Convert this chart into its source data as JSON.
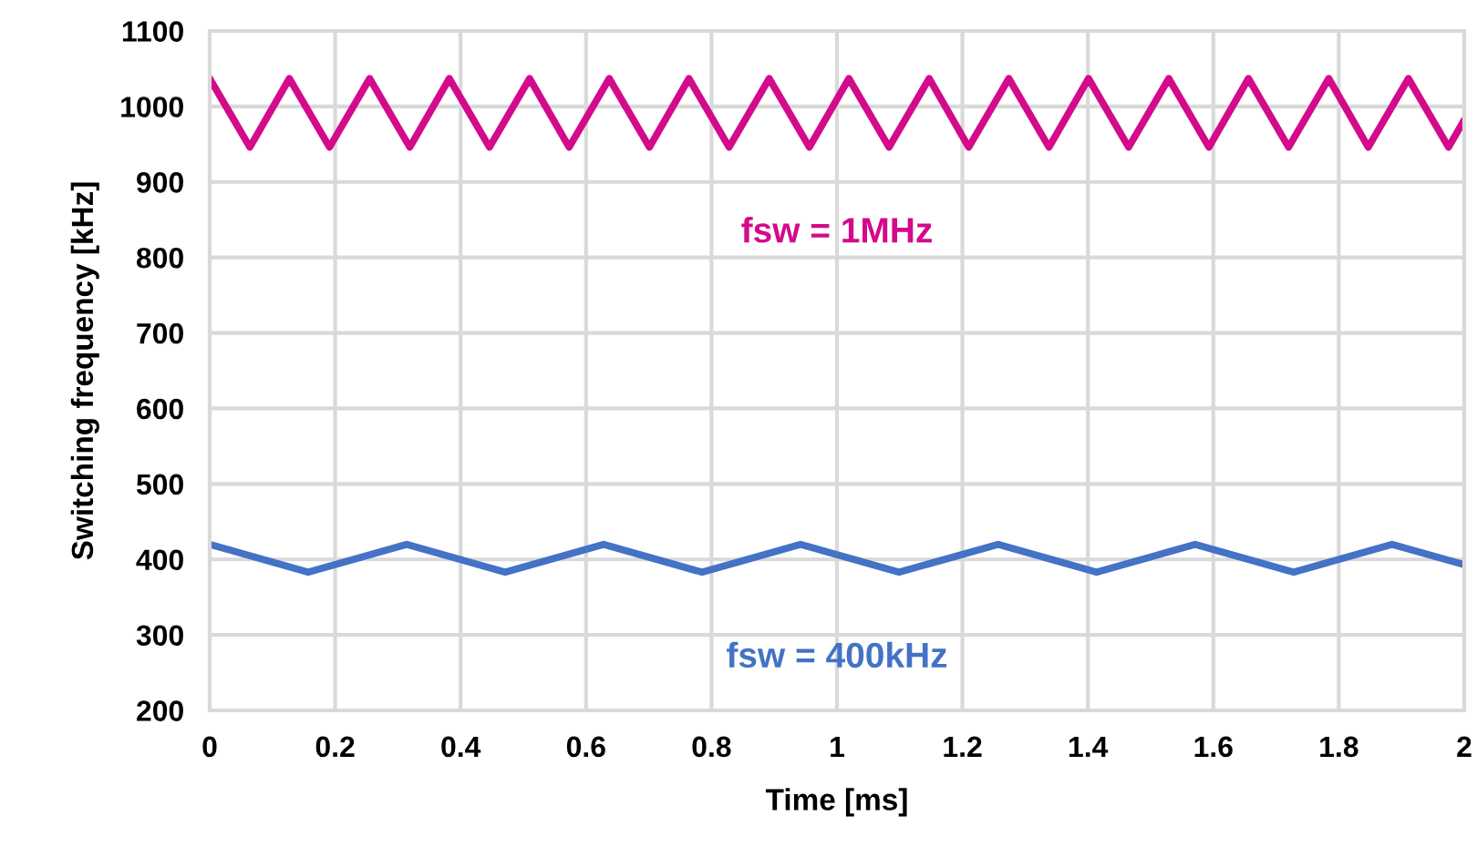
{
  "chart_data": {
    "type": "line",
    "xlabel": "Time [ms]",
    "ylabel": "Switching frequency [kHz]",
    "xlim": [
      0,
      2
    ],
    "xticks": [
      0,
      0.2,
      0.4,
      0.6,
      0.8,
      1,
      1.2,
      1.4,
      1.6,
      1.8,
      2
    ],
    "ylim": [
      200,
      1100
    ],
    "yticks": [
      200,
      300,
      400,
      500,
      600,
      700,
      800,
      900,
      1000,
      1100
    ],
    "grid": true,
    "legend": false,
    "series": [
      {
        "name": "fsw = 1MHz",
        "color": "#d40a8c",
        "x": [
          0,
          0.064,
          0.127,
          0.191,
          0.255,
          0.319,
          0.382,
          0.446,
          0.51,
          0.573,
          0.637,
          0.701,
          0.764,
          0.828,
          0.892,
          0.956,
          1.019,
          1.083,
          1.147,
          1.21,
          1.274,
          1.338,
          1.401,
          1.465,
          1.529,
          1.593,
          1.656,
          1.72,
          1.784,
          1.847,
          1.911,
          1.975,
          2.0
        ],
        "values": [
          1037,
          946,
          1037,
          946,
          1037,
          946,
          1037,
          946,
          1037,
          946,
          1037,
          946,
          1037,
          946,
          1037,
          946,
          1037,
          946,
          1037,
          946,
          1037,
          946,
          1037,
          946,
          1037,
          946,
          1037,
          946,
          1037,
          946,
          1037,
          946,
          982
        ]
      },
      {
        "name": "fsw = 400kHz",
        "color": "#4472c4",
        "x": [
          0,
          0.157,
          0.314,
          0.471,
          0.628,
          0.785,
          0.942,
          1.099,
          1.257,
          1.414,
          1.571,
          1.728,
          1.885,
          2.0
        ],
        "values": [
          420,
          383,
          420,
          383,
          420,
          383,
          420,
          383,
          420,
          383,
          420,
          383,
          420,
          393
        ]
      }
    ]
  }
}
